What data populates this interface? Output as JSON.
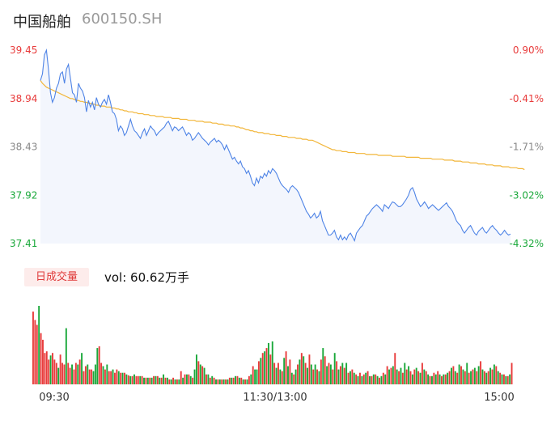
{
  "header": {
    "name": "中国船舶",
    "code": "600150.SH"
  },
  "volume_section": {
    "button_label": "日成交量",
    "volume_text": "vol: 60.62万手"
  },
  "colors": {
    "price_line": "#4f84e6",
    "avg_line": "#f2b63a",
    "up": "#e83b3b",
    "down": "#1aa83a",
    "area": "#f3f6fd"
  },
  "chart_data": [
    {
      "type": "line",
      "ylim": [
        37.41,
        39.45
      ],
      "y_ticks": [
        {
          "price": "39.45",
          "pct": "0.90%",
          "dir": "up"
        },
        {
          "price": "38.94",
          "pct": "-0.41%",
          "dir": "down"
        },
        {
          "price": "38.43",
          "pct": "-1.71%",
          "dir": "flat"
        },
        {
          "price": "37.92",
          "pct": "-3.02%",
          "dir": "green"
        },
        {
          "price": "37.41",
          "pct": "-4.32%",
          "dir": "green"
        }
      ],
      "series": [
        {
          "values": [
            39.13,
            39.2,
            39.4,
            39.45,
            39.25,
            39.0,
            38.9,
            38.95,
            39.05,
            39.1,
            39.2,
            39.22,
            39.1,
            39.25,
            39.3,
            39.15,
            39.0,
            38.98,
            38.9,
            39.1,
            39.05,
            39.02,
            38.95,
            38.8,
            38.92,
            38.85,
            38.9,
            38.82,
            38.95,
            38.88,
            38.85,
            38.9,
            38.93,
            38.88,
            38.98,
            38.9,
            38.8,
            38.78,
            38.72,
            38.6,
            38.65,
            38.62,
            38.55,
            38.58,
            38.65,
            38.72,
            38.65,
            38.6,
            38.58,
            38.55,
            38.52,
            38.58,
            38.62,
            38.55,
            38.6,
            38.65,
            38.62,
            38.6,
            38.55,
            38.58,
            38.6,
            38.62,
            38.64,
            38.68,
            38.7,
            38.65,
            38.6,
            38.64,
            38.63,
            38.6,
            38.62,
            38.64,
            38.6,
            38.55,
            38.58,
            38.56,
            38.5,
            38.52,
            38.55,
            38.58,
            38.55,
            38.52,
            38.5,
            38.48,
            38.45,
            38.48,
            38.5,
            38.52,
            38.48,
            38.5,
            38.48,
            38.45,
            38.4,
            38.45,
            38.4,
            38.35,
            38.3,
            38.32,
            38.28,
            38.25,
            38.28,
            38.22,
            38.2,
            38.15,
            38.18,
            38.12,
            38.05,
            38.02,
            38.1,
            38.05,
            38.12,
            38.1,
            38.15,
            38.12,
            38.18,
            38.15,
            38.2,
            38.18,
            38.15,
            38.1,
            38.05,
            38.02,
            38.0,
            37.98,
            37.95,
            38.0,
            38.02,
            38.0,
            37.98,
            37.95,
            37.9,
            37.85,
            37.8,
            37.75,
            37.72,
            37.68,
            37.7,
            37.73,
            37.68,
            37.7,
            37.75,
            37.65,
            37.6,
            37.55,
            37.5,
            37.5,
            37.52,
            37.55,
            37.48,
            37.45,
            37.5,
            37.45,
            37.48,
            37.45,
            37.5,
            37.52,
            37.48,
            37.44,
            37.52,
            37.55,
            37.58,
            37.6,
            37.65,
            37.7,
            37.72,
            37.75,
            37.78,
            37.8,
            37.82,
            37.8,
            37.78,
            37.75,
            37.82,
            37.8,
            37.78,
            37.82,
            37.85,
            37.84,
            37.82,
            37.8,
            37.8,
            37.82,
            37.85,
            37.88,
            37.92,
            37.98,
            38.0,
            37.95,
            37.88,
            37.84,
            37.8,
            37.82,
            37.85,
            37.82,
            37.78,
            37.8,
            37.82,
            37.8,
            37.78,
            37.76,
            37.78,
            37.8,
            37.82,
            37.84,
            37.8,
            37.78,
            37.75,
            37.7,
            37.65,
            37.62,
            37.6,
            37.55,
            37.52,
            37.55,
            37.58,
            37.6,
            37.56,
            37.52,
            37.5,
            37.54,
            37.56,
            37.58,
            37.54,
            37.52,
            37.55,
            37.58,
            37.6,
            37.57,
            37.55,
            37.52,
            37.5,
            37.52,
            37.55,
            37.52,
            37.5,
            37.51
          ]
        },
        {
          "values": [
            39.13,
            39.1,
            39.08,
            39.06,
            39.05,
            39.04,
            39.03,
            39.02,
            39.01,
            39.0,
            38.99,
            38.98,
            38.97,
            38.96,
            38.95,
            38.94,
            38.94,
            38.93,
            38.92,
            38.92,
            38.91,
            38.91,
            38.9,
            38.9,
            38.89,
            38.89,
            38.88,
            38.88,
            38.87,
            38.87,
            38.86,
            38.86,
            38.86,
            38.85,
            38.85,
            38.85,
            38.84,
            38.84,
            38.83,
            38.83,
            38.82,
            38.82,
            38.81,
            38.81,
            38.8,
            38.8,
            38.8,
            38.79,
            38.79,
            38.78,
            38.78,
            38.78,
            38.77,
            38.77,
            38.77,
            38.76,
            38.76,
            38.76,
            38.75,
            38.75,
            38.75,
            38.75,
            38.74,
            38.74,
            38.74,
            38.74,
            38.73,
            38.73,
            38.73,
            38.73,
            38.72,
            38.72,
            38.72,
            38.72,
            38.71,
            38.71,
            38.71,
            38.71,
            38.7,
            38.7,
            38.7,
            38.7,
            38.69,
            38.69,
            38.69,
            38.69,
            38.68,
            38.68,
            38.68,
            38.67,
            38.67,
            38.67,
            38.66,
            38.66,
            38.66,
            38.65,
            38.65,
            38.65,
            38.64,
            38.64,
            38.63,
            38.63,
            38.62,
            38.61,
            38.61,
            38.6,
            38.6,
            38.59,
            38.59,
            38.58,
            38.58,
            38.58,
            38.57,
            38.57,
            38.57,
            38.56,
            38.56,
            38.56,
            38.55,
            38.55,
            38.55,
            38.54,
            38.54,
            38.54,
            38.53,
            38.53,
            38.53,
            38.53,
            38.52,
            38.52,
            38.52,
            38.51,
            38.51,
            38.51,
            38.5,
            38.5,
            38.5,
            38.49,
            38.48,
            38.47,
            38.46,
            38.45,
            38.44,
            38.43,
            38.42,
            38.41,
            38.4,
            38.4,
            38.39,
            38.39,
            38.39,
            38.38,
            38.38,
            38.38,
            38.37,
            38.37,
            38.37,
            38.37,
            38.36,
            38.36,
            38.36,
            38.36,
            38.36,
            38.35,
            38.35,
            38.35,
            38.35,
            38.35,
            38.35,
            38.34,
            38.34,
            38.34,
            38.34,
            38.34,
            38.34,
            38.34,
            38.33,
            38.33,
            38.33,
            38.33,
            38.33,
            38.33,
            38.33,
            38.32,
            38.32,
            38.32,
            38.32,
            38.32,
            38.32,
            38.32,
            38.31,
            38.31,
            38.31,
            38.31,
            38.31,
            38.31,
            38.3,
            38.3,
            38.3,
            38.3,
            38.3,
            38.3,
            38.29,
            38.29,
            38.29,
            38.29,
            38.29,
            38.28,
            38.28,
            38.28,
            38.28,
            38.27,
            38.27,
            38.27,
            38.27,
            38.26,
            38.26,
            38.26,
            38.26,
            38.25,
            38.25,
            38.25,
            38.25,
            38.24,
            38.24,
            38.24,
            38.24,
            38.23,
            38.23,
            38.23,
            38.23,
            38.22,
            38.22,
            38.22,
            38.22,
            38.21,
            38.21,
            38.21,
            38.21,
            38.2,
            38.2,
            38.2,
            38.19
          ]
        }
      ]
    },
    {
      "type": "bar",
      "x_ticks": [
        "09:30",
        "11:30/13:00",
        "15:00"
      ],
      "values": [
        88,
        78,
        72,
        95,
        62,
        54,
        38,
        40,
        30,
        35,
        38,
        30,
        26,
        20,
        36,
        26,
        24,
        68,
        26,
        20,
        24,
        18,
        26,
        24,
        30,
        38,
        16,
        22,
        24,
        18,
        18,
        16,
        24,
        44,
        46,
        26,
        22,
        18,
        24,
        16,
        16,
        18,
        14,
        18,
        16,
        14,
        14,
        14,
        12,
        11,
        10,
        10,
        12,
        10,
        10,
        10,
        10,
        8,
        8,
        8,
        8,
        8,
        10,
        10,
        10,
        8,
        8,
        12,
        8,
        8,
        6,
        6,
        8,
        6,
        6,
        6,
        16,
        8,
        12,
        12,
        12,
        10,
        8,
        18,
        36,
        28,
        24,
        22,
        20,
        12,
        12,
        8,
        10,
        8,
        6,
        6,
        6,
        6,
        6,
        6,
        6,
        8,
        8,
        8,
        10,
        10,
        8,
        8,
        6,
        6,
        6,
        10,
        12,
        22,
        18,
        18,
        28,
        32,
        38,
        40,
        44,
        50,
        36,
        52,
        26,
        20,
        26,
        18,
        16,
        32,
        40,
        22,
        30,
        14,
        12,
        18,
        24,
        30,
        38,
        34,
        26,
        20,
        36,
        24,
        18,
        24,
        18,
        16,
        30,
        44,
        34,
        22,
        26,
        24,
        18,
        38,
        28,
        18,
        22,
        26,
        20,
        26,
        14,
        16,
        18,
        14,
        12,
        10,
        14,
        10,
        12,
        14,
        16,
        10,
        10,
        12,
        12,
        10,
        8,
        10,
        14,
        12,
        22,
        18,
        20,
        22,
        38,
        18,
        16,
        20,
        14,
        26,
        18,
        22,
        16,
        12,
        18,
        20,
        16,
        14,
        26,
        18,
        16,
        12,
        10,
        10,
        14,
        12,
        16,
        12,
        10,
        12,
        12,
        14,
        16,
        20,
        22,
        16,
        14,
        24,
        22,
        18,
        16,
        26,
        14,
        16,
        18,
        20,
        16,
        22,
        28,
        18,
        16,
        14,
        16,
        20,
        18,
        24,
        22,
        16,
        14,
        12,
        12,
        10,
        10,
        12,
        26
      ],
      "colors": [
        "up",
        "up",
        "up",
        "down",
        "up",
        "up",
        "up",
        "up",
        "up",
        "down",
        "up",
        "up",
        "up",
        "down",
        "up",
        "up",
        "up",
        "down",
        "up",
        "up",
        "down",
        "up",
        "up",
        "down",
        "up",
        "down",
        "up",
        "up",
        "down",
        "up",
        "up",
        "down",
        "down",
        "down",
        "up",
        "up",
        "down",
        "up",
        "down",
        "up",
        "up",
        "down",
        "up",
        "up",
        "down",
        "up",
        "down",
        "up",
        "down",
        "up",
        "down",
        "up",
        "down",
        "up",
        "up",
        "down",
        "up",
        "down",
        "up",
        "down",
        "up",
        "down",
        "up",
        "down",
        "up",
        "down",
        "up",
        "down",
        "up",
        "down",
        "up",
        "down",
        "up",
        "down",
        "up",
        "down",
        "up",
        "down",
        "up",
        "down",
        "up",
        "down",
        "up",
        "down",
        "down",
        "up",
        "down",
        "up",
        "down",
        "up",
        "down",
        "up",
        "down",
        "up",
        "down",
        "up",
        "down",
        "up",
        "down",
        "up",
        "down",
        "up",
        "down",
        "up",
        "down",
        "up",
        "down",
        "up",
        "down",
        "up",
        "down",
        "up",
        "down",
        "up",
        "down",
        "down",
        "up",
        "down",
        "up",
        "down",
        "up",
        "down",
        "up",
        "down",
        "up",
        "down",
        "up",
        "down",
        "up",
        "down",
        "up",
        "down",
        "up",
        "down",
        "up",
        "down",
        "up",
        "down",
        "up",
        "down",
        "up",
        "down",
        "up",
        "down",
        "up",
        "down",
        "up",
        "down",
        "up",
        "down",
        "up",
        "down",
        "up",
        "down",
        "up",
        "down",
        "up",
        "down",
        "up",
        "down",
        "up",
        "down",
        "up",
        "down",
        "up",
        "down",
        "up",
        "down",
        "up",
        "down",
        "up",
        "down",
        "up",
        "down",
        "up",
        "down",
        "up",
        "down",
        "up",
        "down",
        "up",
        "down",
        "up",
        "down",
        "up",
        "down",
        "up",
        "down",
        "up",
        "down",
        "up",
        "down",
        "up",
        "down",
        "up",
        "down",
        "up",
        "down",
        "up",
        "down",
        "up",
        "down",
        "up",
        "down",
        "up",
        "down",
        "up",
        "down",
        "up",
        "down",
        "up",
        "down",
        "up",
        "down",
        "up",
        "down",
        "up",
        "down",
        "up",
        "down",
        "up",
        "down",
        "up",
        "down",
        "up",
        "down",
        "up",
        "down",
        "up",
        "down",
        "up",
        "down",
        "up",
        "down",
        "up",
        "down",
        "up",
        "down",
        "up",
        "down",
        "up",
        "down",
        "up",
        "down",
        "up",
        "down",
        "up",
        "down",
        "up",
        "up"
      ]
    }
  ]
}
